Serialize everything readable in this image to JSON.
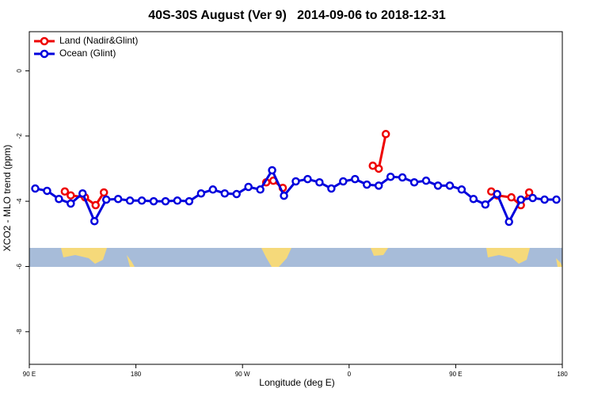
{
  "chart_data": {
    "type": "line",
    "title": "40S-30S August (Ver 9)   2014-09-06 to 2018-12-31",
    "x_label": "Longitude (deg E)",
    "y_label": "XCO2 - MLO trend (ppm)",
    "xlim": [
      90,
      540
    ],
    "ylim": [
      -9,
      1.2
    ],
    "xticks": [
      {
        "value": 90,
        "label": "90 E"
      },
      {
        "value": 180,
        "label": "180"
      },
      {
        "value": 270,
        "label": "90 W"
      },
      {
        "value": 360,
        "label": "0"
      },
      {
        "value": 450,
        "label": "90 E"
      },
      {
        "value": 540,
        "label": "180"
      }
    ],
    "yticks": [
      0,
      -2,
      -4,
      -6,
      -8
    ],
    "legend": "top-left",
    "series": [
      {
        "name": "Land (Nadir&Glint)",
        "color": "#ee0000",
        "x": [
          120,
          125,
          137,
          146,
          153,
          null,
          290,
          296,
          304,
          null,
          380,
          385,
          391,
          null,
          480,
          485,
          497,
          505,
          512
        ],
        "values": [
          -3.7,
          -3.82,
          -3.88,
          -4.12,
          -3.73,
          null,
          -3.42,
          -3.37,
          -3.59,
          null,
          -2.91,
          -3.0,
          -1.94,
          null,
          -3.7,
          -3.82,
          -3.88,
          -4.12,
          -3.73
        ]
      },
      {
        "name": "Ocean (Glint)",
        "color": "#0000dd",
        "x": [
          95,
          105,
          115,
          125,
          135,
          145,
          155,
          165,
          175,
          185,
          195,
          205,
          215,
          225,
          235,
          245,
          255,
          265,
          275,
          285,
          295,
          305,
          315,
          325,
          335,
          345,
          355,
          365,
          375,
          385,
          395,
          405,
          415,
          425,
          435,
          445,
          455,
          465,
          475,
          485,
          495,
          505,
          515,
          525,
          535
        ],
        "values": [
          -3.61,
          -3.68,
          -3.93,
          -4.07,
          -3.76,
          -4.61,
          -3.95,
          -3.93,
          -3.98,
          -3.98,
          -4.0,
          -4.0,
          -3.98,
          -4.0,
          -3.76,
          -3.64,
          -3.76,
          -3.78,
          -3.56,
          -3.64,
          -3.05,
          -3.83,
          -3.39,
          -3.32,
          -3.42,
          -3.61,
          -3.39,
          -3.32,
          -3.49,
          -3.52,
          -3.25,
          -3.27,
          -3.42,
          -3.37,
          -3.52,
          -3.52,
          -3.64,
          -3.93,
          -4.1,
          -3.78,
          -4.63,
          -3.95,
          -3.9,
          -3.95,
          -3.95
        ]
      }
    ]
  }
}
